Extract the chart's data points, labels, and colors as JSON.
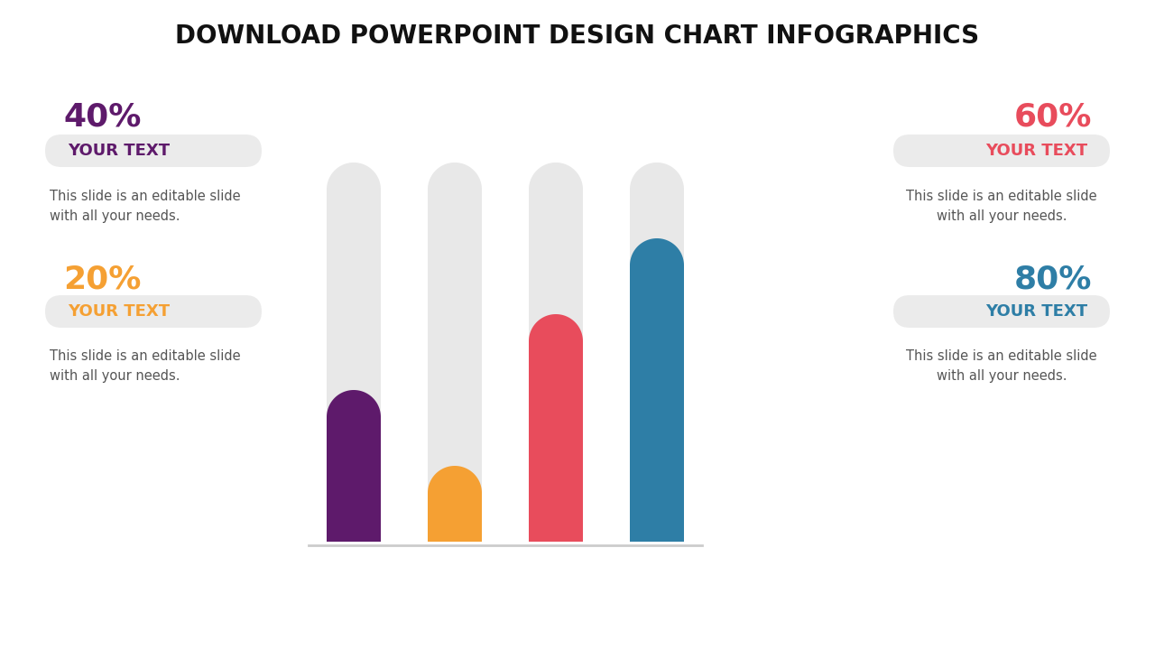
{
  "title": "DOWNLOAD POWERPOINT DESIGN CHART INFOGRAPHICS",
  "title_fontsize": 20,
  "title_color": "#111111",
  "background_color": "#ffffff",
  "bars": [
    {
      "value": 0.4,
      "color": "#5E1A6B",
      "bg_color": "#E8E8E8"
    },
    {
      "value": 0.2,
      "color": "#F5A033",
      "bg_color": "#E8E8E8"
    },
    {
      "value": 0.6,
      "color": "#E84C5C",
      "bg_color": "#E8E8E8"
    },
    {
      "value": 0.8,
      "color": "#2E7EA6",
      "bg_color": "#E8E8E8"
    }
  ],
  "left_labels": [
    {
      "percent": "40%",
      "percent_color": "#5E1A6B",
      "label": "YOUR TEXT",
      "label_color": "#5E1A6B",
      "desc": "This slide is an editable slide\nwith all your needs.",
      "desc_color": "#555555"
    },
    {
      "percent": "20%",
      "percent_color": "#F5A033",
      "label": "YOUR TEXT",
      "label_color": "#F5A033",
      "desc": "This slide is an editable slide\nwith all your needs.",
      "desc_color": "#555555"
    }
  ],
  "right_labels": [
    {
      "percent": "60%",
      "percent_color": "#E84C5C",
      "label": "YOUR TEXT",
      "label_color": "#E84C5C",
      "desc": "This slide is an editable slide\nwith all your needs.",
      "desc_color": "#555555"
    },
    {
      "percent": "80%",
      "percent_color": "#2E7EA6",
      "label": "YOUR TEXT",
      "label_color": "#2E7EA6",
      "desc": "This slide is an editable slide\nwith all your needs.",
      "desc_color": "#555555"
    }
  ]
}
